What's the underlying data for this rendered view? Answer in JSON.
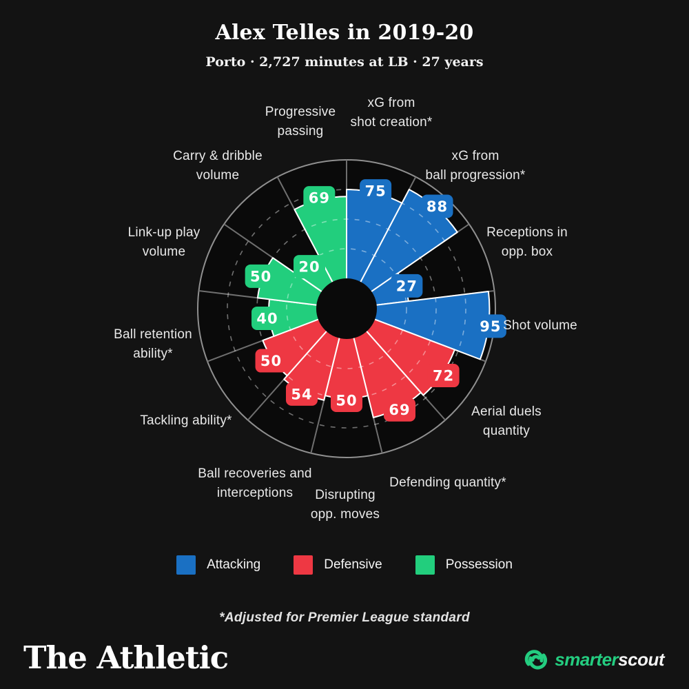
{
  "header": {
    "title": "Alex Telles in 2019-20",
    "subtitle": "Porto · 2,727 minutes at LB · 27 years"
  },
  "chart_data": {
    "type": "radial-bar",
    "title": "Alex Telles in 2019-20",
    "scale": {
      "min": 0,
      "max": 100,
      "gridlines": [
        25,
        50,
        75
      ],
      "grid_style": "dashed"
    },
    "start_angle_deg": 0,
    "direction": "clockwise",
    "categories": [
      {
        "lines": [
          "xG from",
          "shot creation*"
        ],
        "value": 75,
        "group": "attacking"
      },
      {
        "lines": [
          "xG from",
          "ball progression*"
        ],
        "value": 88,
        "group": "attacking"
      },
      {
        "lines": [
          "Receptions in",
          "opp. box"
        ],
        "value": 27,
        "group": "attacking"
      },
      {
        "lines": [
          "Shot volume"
        ],
        "value": 95,
        "group": "attacking"
      },
      {
        "lines": [
          "Aerial duels",
          "quantity"
        ],
        "value": 72,
        "group": "defensive"
      },
      {
        "lines": [
          "Defending quantity*"
        ],
        "value": 69,
        "group": "defensive"
      },
      {
        "lines": [
          "Disrupting",
          "opp. moves"
        ],
        "value": 50,
        "group": "defensive"
      },
      {
        "lines": [
          "Ball recoveries and",
          "interceptions"
        ],
        "value": 54,
        "group": "defensive"
      },
      {
        "lines": [
          "Tackling ability*"
        ],
        "value": 50,
        "group": "defensive"
      },
      {
        "lines": [
          "Ball retention",
          "ability*"
        ],
        "value": 40,
        "group": "possession"
      },
      {
        "lines": [
          "Link-up play",
          "volume"
        ],
        "value": 50,
        "group": "possession"
      },
      {
        "lines": [
          "Carry & dribble",
          "volume"
        ],
        "value": 20,
        "group": "possession"
      },
      {
        "lines": [
          "Progressive",
          "passing"
        ],
        "value": 69,
        "group": "possession"
      }
    ]
  },
  "colors": {
    "background": "#131313",
    "chart_bg": "#0a0a0a",
    "attacking": "#1a70c3",
    "defensive": "#ee3843",
    "possession": "#22ce7d",
    "ring": "#909090",
    "spoke": "#6f6f6f",
    "brand_green": "#24cd80"
  },
  "legend": {
    "items": [
      {
        "label": "Attacking",
        "group": "attacking"
      },
      {
        "label": "Defensive",
        "group": "defensive"
      },
      {
        "label": "Possession",
        "group": "possession"
      }
    ]
  },
  "footnote": "*Adjusted for Premier League standard",
  "footer": {
    "brand": "The Athletic",
    "partner_word_1": "smarter",
    "partner_word_2": "scout"
  }
}
